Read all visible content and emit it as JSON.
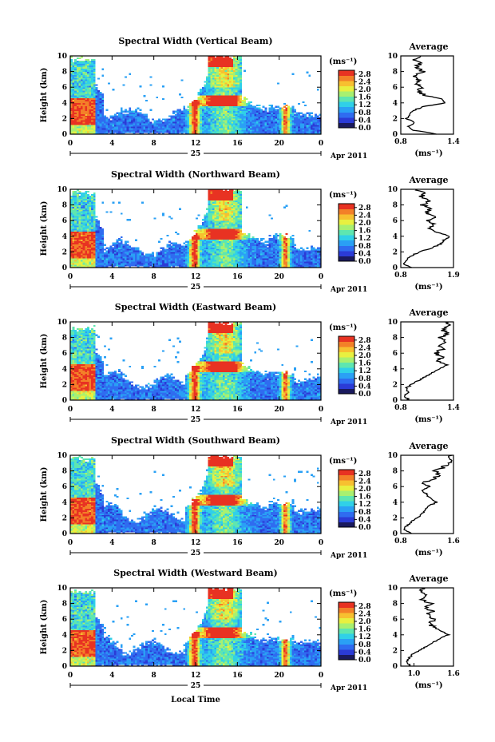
{
  "figure": {
    "xlabel": "Local Time",
    "date_day": "25",
    "date_month": "Apr 2011",
    "colorbar_unit": "(ms⁻¹)",
    "colorbar_ticks": [
      "2.8",
      "2.4",
      "2.0",
      "1.6",
      "1.2",
      "0.8",
      "0.4",
      "0.0"
    ],
    "colormap": [
      "#1a1a5e",
      "#2b3bd6",
      "#2f6cf0",
      "#2aa0f5",
      "#30d0e8",
      "#5ee6b0",
      "#a8f070",
      "#e8f040",
      "#f7c030",
      "#f38028",
      "#e83222"
    ],
    "average_title": "Average",
    "average_xlabel": "(ms⁻¹)",
    "ylabel": "Height (km)"
  },
  "chart_data": [
    {
      "type": "heatmap",
      "title": "Spectral Width (Vertical Beam)",
      "xlabel": "",
      "ylabel": "Height (km)",
      "xlim": [
        0,
        24
      ],
      "ylim": [
        0,
        10
      ],
      "xticks": [
        "0",
        "4",
        "8",
        "12",
        "16",
        "20",
        "0"
      ],
      "yticks": [
        "0",
        "2",
        "4",
        "6",
        "8",
        "10"
      ],
      "colorbar_range": [
        0.0,
        3.0
      ],
      "profile": {
        "title": "Average",
        "xlabel": "(ms⁻¹)",
        "xlim": [
          0.8,
          1.4
        ],
        "xticks": [
          "0.8",
          "1.4"
        ],
        "height": [
          0,
          0.5,
          1,
          1.5,
          2,
          2.5,
          3,
          3.5,
          4,
          4.5,
          5,
          5.5,
          6,
          6.5,
          7,
          7.5,
          8,
          8.5,
          9,
          9.5,
          10
        ],
        "value": [
          1.22,
          0.95,
          0.88,
          0.96,
          0.86,
          0.9,
          0.94,
          1.05,
          1.3,
          1.26,
          1.06,
          1.0,
          1.03,
          0.97,
          1.01,
          0.95,
          1.06,
          0.97,
          1.02,
          0.96,
          1.0
        ]
      }
    },
    {
      "type": "heatmap",
      "title": "Spectral Width (Northward Beam)",
      "xlabel": "",
      "ylabel": "Height (km)",
      "xlim": [
        0,
        24
      ],
      "ylim": [
        0,
        10
      ],
      "xticks": [
        "0",
        "4",
        "8",
        "12",
        "16",
        "20",
        "0"
      ],
      "yticks": [
        "0",
        "2",
        "4",
        "6",
        "8",
        "10"
      ],
      "colorbar_range": [
        0.0,
        3.0
      ],
      "profile": {
        "title": "Average",
        "xlabel": "(ms⁻¹)",
        "xlim": [
          0.8,
          1.9
        ],
        "xticks": [
          "0.8",
          "1.9"
        ],
        "height": [
          0,
          0.5,
          1,
          1.5,
          2,
          2.5,
          3,
          3.5,
          4,
          4.5,
          5,
          5.5,
          6,
          6.5,
          7,
          7.5,
          8,
          8.5,
          9,
          9.5,
          10
        ],
        "value": [
          1.05,
          0.85,
          0.92,
          1.02,
          1.2,
          1.45,
          1.62,
          1.7,
          1.82,
          1.55,
          1.4,
          1.52,
          1.38,
          1.48,
          1.33,
          1.42,
          1.26,
          1.36,
          1.22,
          1.3,
          1.15
        ]
      }
    },
    {
      "type": "heatmap",
      "title": "Spectral Width (Eastward Beam)",
      "xlabel": "",
      "ylabel": "Height (km)",
      "xlim": [
        0,
        24
      ],
      "ylim": [
        0,
        10
      ],
      "xticks": [
        "0",
        "4",
        "8",
        "12",
        "16",
        "20",
        "0"
      ],
      "yticks": [
        "0",
        "2",
        "4",
        "6",
        "8",
        "10"
      ],
      "colorbar_range": [
        0.0,
        3.0
      ],
      "profile": {
        "title": "Average",
        "xlabel": "(ms⁻¹)",
        "xlim": [
          0.8,
          1.4
        ],
        "xticks": [
          "0.8",
          "1.4"
        ],
        "height": [
          0,
          0.5,
          1,
          1.5,
          2,
          2.5,
          3,
          3.5,
          4,
          4.5,
          5,
          5.5,
          6,
          6.5,
          7,
          7.5,
          8,
          8.5,
          9,
          9.5,
          10
        ],
        "value": [
          0.9,
          0.84,
          0.88,
          0.86,
          0.92,
          1.0,
          1.08,
          1.16,
          1.24,
          1.32,
          1.22,
          1.28,
          1.2,
          1.27,
          1.22,
          1.3,
          1.24,
          1.34,
          1.28,
          1.37,
          1.3
        ]
      }
    },
    {
      "type": "heatmap",
      "title": "Spectral Width (Southward Beam)",
      "xlabel": "",
      "ylabel": "Height (km)",
      "xlim": [
        0,
        24
      ],
      "ylim": [
        0,
        10
      ],
      "xticks": [
        "0",
        "4",
        "8",
        "12",
        "16",
        "20",
        "0"
      ],
      "yticks": [
        "0",
        "2",
        "4",
        "6",
        "8",
        "10"
      ],
      "colorbar_range": [
        0.0,
        3.0
      ],
      "profile": {
        "title": "Average",
        "xlabel": "(ms⁻¹)",
        "xlim": [
          0.8,
          1.6
        ],
        "xticks": [
          "0.8",
          "1.6"
        ],
        "height": [
          0,
          0.5,
          1,
          1.5,
          2,
          2.5,
          3,
          3.5,
          4,
          4.5,
          5,
          5.5,
          6,
          6.5,
          7,
          7.5,
          8,
          8.5,
          9,
          9.5,
          10
        ],
        "value": [
          0.95,
          0.84,
          0.9,
          0.96,
          1.05,
          1.12,
          1.18,
          1.22,
          1.34,
          1.24,
          1.2,
          1.16,
          1.26,
          1.15,
          1.3,
          1.38,
          1.33,
          1.45,
          1.52,
          1.58,
          1.55
        ]
      }
    },
    {
      "type": "heatmap",
      "title": "Spectral Width (Westward Beam)",
      "xlabel": "Local Time",
      "ylabel": "Height (km)",
      "xlim": [
        0,
        24
      ],
      "ylim": [
        0,
        10
      ],
      "xticks": [
        "0",
        "4",
        "8",
        "12",
        "16",
        "20",
        "0"
      ],
      "yticks": [
        "0",
        "2",
        "4",
        "6",
        "8",
        "10"
      ],
      "colorbar_range": [
        0.0,
        3.0
      ],
      "profile": {
        "title": "Average",
        "xlabel": "(ms⁻¹)",
        "xlim": [
          0.8,
          1.6
        ],
        "xticks": [
          "1.0",
          "1.6"
        ],
        "height": [
          0,
          0.5,
          1,
          1.5,
          2,
          2.5,
          3,
          3.5,
          4,
          4.5,
          5,
          5.5,
          6,
          6.5,
          7,
          7.5,
          8,
          8.5,
          9,
          9.5,
          10
        ],
        "value": [
          0.95,
          0.88,
          0.92,
          0.98,
          1.08,
          1.18,
          1.28,
          1.4,
          1.52,
          1.42,
          1.3,
          1.22,
          1.32,
          1.2,
          1.28,
          1.18,
          1.26,
          1.12,
          1.22,
          1.1,
          1.15
        ]
      }
    }
  ]
}
